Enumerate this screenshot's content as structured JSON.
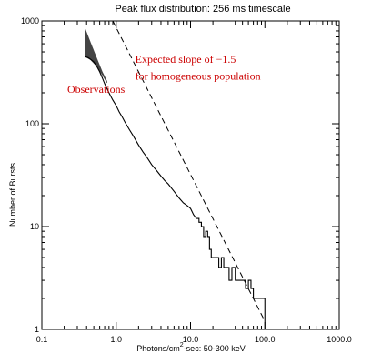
{
  "chart_data": {
    "type": "line",
    "title": "Peak flux distribution: 256 ms timescale",
    "xlabel": "Photons/cm",
    "xlabel_sup": "2",
    "xlabel_rest": "-sec: 50-300 keV",
    "ylabel": "Number of Bursts",
    "x_scale": "log",
    "y_scale": "log",
    "xlim": [
      0.1,
      1000.0
    ],
    "ylim": [
      1,
      1000
    ],
    "x_ticks": [
      {
        "value": 0.1,
        "label": "0.1"
      },
      {
        "value": 1.0,
        "label": "1.0"
      },
      {
        "value": 10.0,
        "label": "10.0"
      },
      {
        "value": 100.0,
        "label": "100.0"
      },
      {
        "value": 1000.0,
        "label": "1000.0"
      }
    ],
    "y_ticks": [
      {
        "value": 1,
        "label": "1"
      },
      {
        "value": 10,
        "label": "10"
      },
      {
        "value": 100,
        "label": "100"
      },
      {
        "value": 1000,
        "label": "1000"
      }
    ],
    "grid": false,
    "colors": {
      "annotation": "#cc0000",
      "line": "#000000",
      "band": "#444444"
    },
    "annotations": [
      {
        "text": "Expected slope of −1.5",
        "x": 1.8,
        "y": 390
      },
      {
        "text": "for homogeneous population",
        "x": 1.8,
        "y": 270
      },
      {
        "text": "Observations",
        "x": 0.22,
        "y": 200
      }
    ],
    "series": [
      {
        "style": "solid",
        "x": [
          0.38,
          0.42,
          0.46,
          0.5,
          0.55,
          0.6,
          0.65,
          0.7,
          0.8,
          0.9,
          1.0,
          1.1,
          1.2,
          1.3,
          1.5,
          1.7,
          2.0,
          2.3,
          2.6,
          3.0,
          3.5,
          4.0,
          4.5,
          5.0,
          6.0,
          7.0,
          8.0,
          9.0,
          10.0,
          11.0,
          12.0,
          13.0,
          14.0,
          15.0,
          16.0,
          17.0,
          18.0,
          19.0,
          20.0,
          22.0,
          24.0,
          26.0,
          28.0,
          30.0,
          33.0,
          36.0,
          40.0,
          45.0,
          50.0,
          55.0,
          60.0,
          65.0,
          70.0,
          75.0,
          80.0,
          90.0,
          100.0
        ],
        "y": [
          450,
          440,
          420,
          400,
          360,
          320,
          280,
          245,
          200,
          170,
          150,
          130,
          117,
          105,
          88,
          76,
          62,
          53,
          47,
          40,
          35,
          31,
          28,
          26,
          22,
          19,
          17,
          16,
          15,
          13,
          12,
          11,
          10,
          8,
          9,
          8,
          6,
          5,
          5,
          5,
          4,
          5,
          4,
          4,
          3,
          4,
          3,
          3,
          3,
          2.5,
          3,
          2.5,
          2,
          2,
          2,
          2,
          2
        ]
      },
      {
        "style": "dashed",
        "x": [
          0.9,
          100.0
        ],
        "y": [
          1000,
          1.2
        ]
      }
    ],
    "band": {
      "x": [
        0.38,
        0.45,
        0.55,
        0.65,
        0.75
      ],
      "y_low": [
        450,
        420,
        360,
        300,
        250
      ],
      "y_high": [
        850,
        620,
        430,
        320,
        260
      ]
    }
  }
}
